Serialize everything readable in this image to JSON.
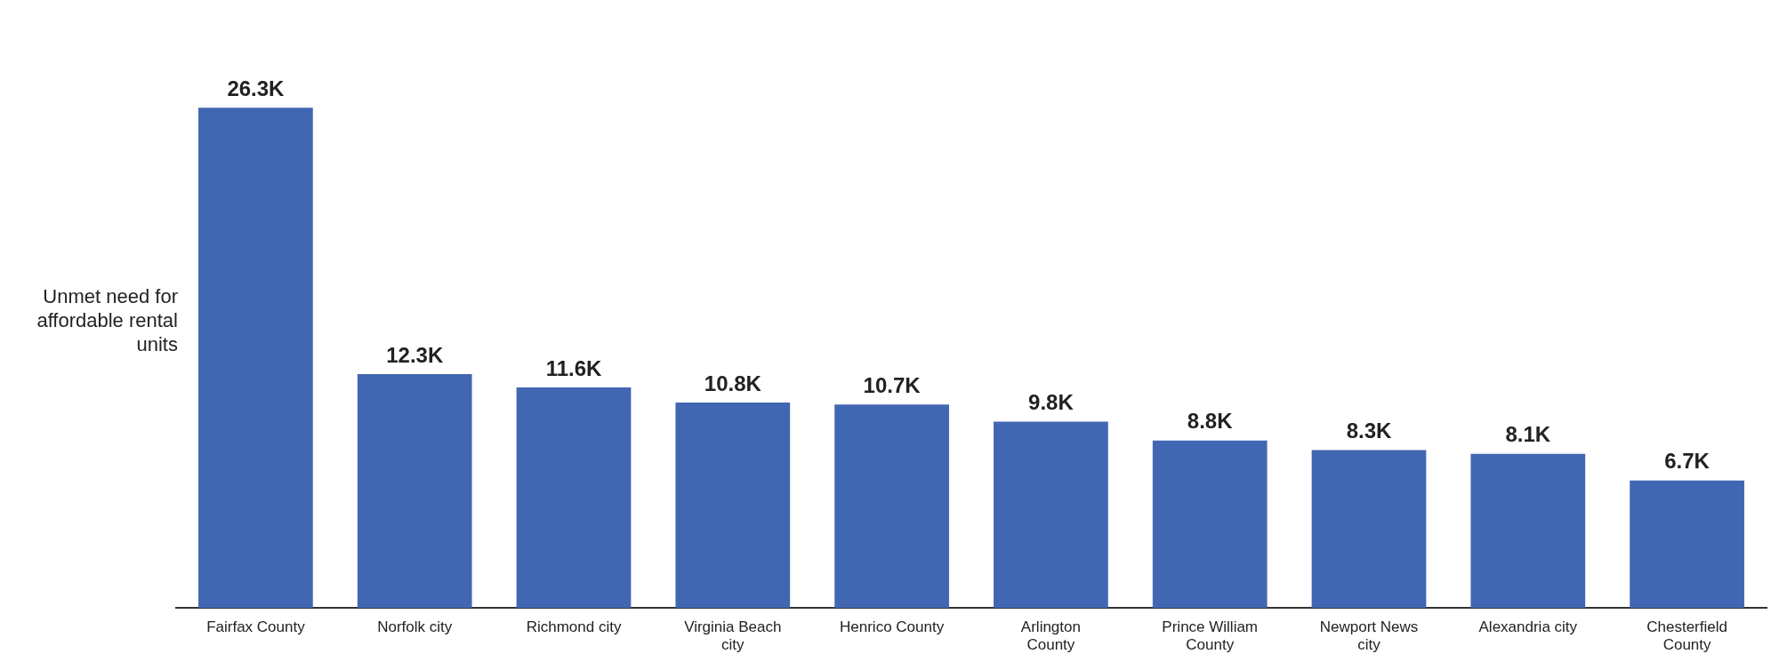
{
  "chart_data": {
    "type": "bar",
    "ylabel": "Unmet need for affordable rental units",
    "categories": [
      "Fairfax County",
      "Norfolk city",
      "Richmond city",
      "Virginia Beach city",
      "Henrico County",
      "Arlington County",
      "Prince William County",
      "Newport News city",
      "Alexandria city",
      "Chesterfield County"
    ],
    "values": [
      26.3,
      12.3,
      11.6,
      10.8,
      10.7,
      9.8,
      8.8,
      8.3,
      8.1,
      6.7
    ],
    "value_labels": [
      "26.3K",
      "12.3K",
      "11.6K",
      "10.8K",
      "10.7K",
      "9.8K",
      "8.8K",
      "8.3K",
      "8.1K",
      "6.7K"
    ],
    "color": "#4267b2",
    "grid": false,
    "legend": false
  }
}
